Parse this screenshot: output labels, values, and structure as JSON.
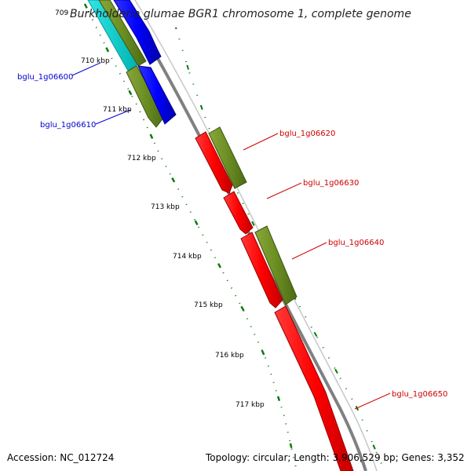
{
  "map": {
    "title": "Burkholderia glumae BGR1 chromosome 1, complete genome",
    "title_tick": "709",
    "ticks": [
      "710 kbp",
      "711 kbp",
      "712 kbp",
      "713 kbp",
      "714 kbp",
      "715 kbp",
      "716 kbp",
      "717 kbp"
    ],
    "gene_labels": [
      {
        "text": "bglu_1g06600",
        "color": "#0000cc"
      },
      {
        "text": "bglu_1g06610",
        "color": "#0000cc"
      },
      {
        "text": "bglu_1g06620",
        "color": "#cc0000"
      },
      {
        "text": "bglu_1g06630",
        "color": "#cc0000"
      },
      {
        "text": "bglu_1g06640",
        "color": "#cc0000"
      },
      {
        "text": "bglu_1g06650",
        "color": "#cc0000"
      }
    ],
    "colors": {
      "backbone": "#808080",
      "forward_cds": "#0000ff",
      "reverse_cds": "#ff0000",
      "cog": "#6b8e23",
      "rna": "#00cccc",
      "ticks": "#0a7a0a"
    }
  },
  "footer": {
    "accession": "Accession: NC_012724",
    "summary": "Topology: circular; Length: 3,906,529 bp; Genes: 3,352"
  }
}
